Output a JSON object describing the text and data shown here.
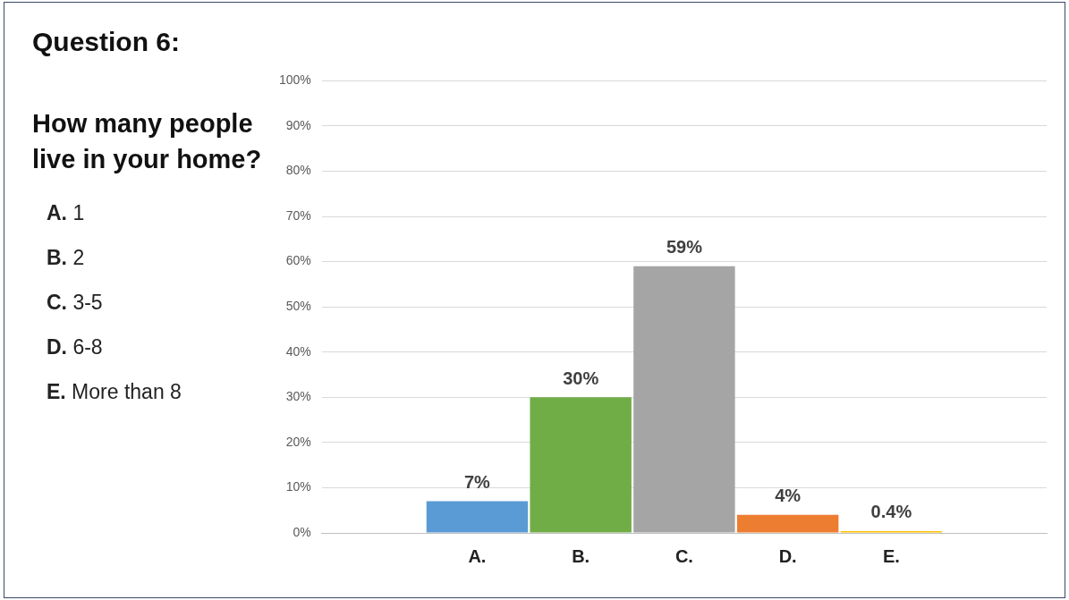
{
  "chart_data": {
    "type": "bar",
    "title": "Question 6:",
    "subtitle": "How many people live in your home?",
    "annotations": [
      "A. 1",
      "B. 2",
      "C. 3-5",
      "D. 6-8",
      "E. More than 8"
    ],
    "categories": [
      null,
      "A.",
      "B.",
      "C.",
      "D.",
      "E.",
      null
    ],
    "values": [
      null,
      7,
      30,
      59,
      4,
      0.4,
      null
    ],
    "colors": [
      "#5b9bd5",
      "#5b9bd5",
      "#70ad47",
      "#a5a5a5",
      "#ed7d31",
      "#ffc000",
      "#ffc000"
    ],
    "value_labels": [
      null,
      "7%",
      "30%",
      "59%",
      "4%",
      "0.4%",
      null
    ],
    "ylim": [
      0,
      100
    ],
    "yticks": [
      {
        "value": 0,
        "label": "0%"
      },
      {
        "value": 10,
        "label": "10%"
      },
      {
        "value": 20,
        "label": "20%"
      },
      {
        "value": 30,
        "label": "30%"
      },
      {
        "value": 40,
        "label": "40%"
      },
      {
        "value": 50,
        "label": "50%"
      },
      {
        "value": 60,
        "label": "60%"
      },
      {
        "value": 70,
        "label": "70%"
      },
      {
        "value": 80,
        "label": "80%"
      },
      {
        "value": 90,
        "label": "90%"
      },
      {
        "value": 100,
        "label": "100%"
      }
    ],
    "grid": "y"
  }
}
